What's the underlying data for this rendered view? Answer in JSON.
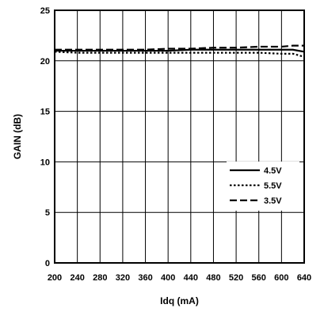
{
  "chart_data": {
    "type": "line",
    "xlabel": "Idq (mA)",
    "ylabel": "GAIN (dB)",
    "xlim": [
      200,
      640
    ],
    "ylim": [
      0,
      25
    ],
    "x_ticks": [
      200,
      240,
      280,
      320,
      360,
      400,
      440,
      480,
      520,
      560,
      600,
      640
    ],
    "y_ticks": [
      0,
      5,
      10,
      15,
      20,
      25
    ],
    "grid": true,
    "legend_position": "lower-right",
    "series": [
      {
        "name": "4.5V",
        "style": "solid",
        "x": [
          200,
          240,
          280,
          320,
          360,
          400,
          440,
          480,
          520,
          560,
          600,
          620,
          640
        ],
        "y": [
          21.0,
          21.0,
          21.0,
          21.0,
          21.0,
          21.0,
          21.1,
          21.1,
          21.1,
          21.1,
          21.1,
          21.1,
          20.9
        ]
      },
      {
        "name": "5.5V",
        "style": "dotted",
        "x": [
          200,
          240,
          280,
          320,
          360,
          400,
          440,
          480,
          520,
          560,
          600,
          620,
          640
        ],
        "y": [
          20.9,
          20.8,
          20.8,
          20.8,
          20.8,
          20.8,
          20.8,
          20.8,
          20.8,
          20.8,
          20.7,
          20.7,
          20.4
        ]
      },
      {
        "name": "3.5V",
        "style": "dashed",
        "x": [
          200,
          240,
          280,
          320,
          360,
          400,
          440,
          480,
          520,
          560,
          600,
          620,
          640
        ],
        "y": [
          21.1,
          21.1,
          21.1,
          21.1,
          21.1,
          21.2,
          21.2,
          21.3,
          21.3,
          21.4,
          21.4,
          21.5,
          21.5
        ]
      }
    ]
  }
}
